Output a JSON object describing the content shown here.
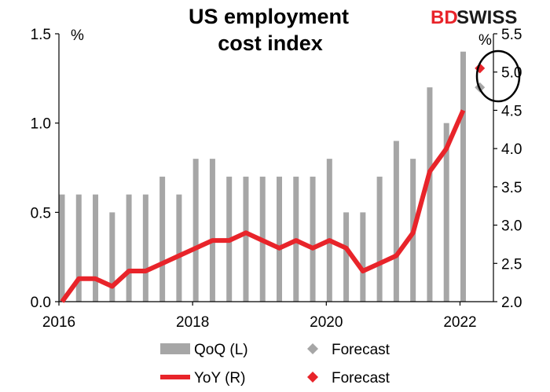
{
  "chart_data": {
    "type": "bar+line",
    "title": "US employment cost index",
    "title_lines": [
      "US employment",
      "cost index"
    ],
    "logo": {
      "part1": "BD",
      "part2": "SWISS"
    },
    "left_axis": {
      "unit": "%",
      "ylim": [
        0.0,
        1.5
      ],
      "ticks": [
        "0.0",
        "0.5",
        "1.0",
        "1.5"
      ],
      "tick_values": [
        0.0,
        0.5,
        1.0,
        1.5
      ]
    },
    "right_axis": {
      "unit": "%",
      "ylim": [
        2.0,
        5.5
      ],
      "ticks": [
        "2.0",
        "2.5",
        "3.0",
        "3.5",
        "4.0",
        "4.5",
        "5.0",
        "5.5"
      ],
      "tick_values": [
        2.0,
        2.5,
        3.0,
        3.5,
        4.0,
        4.5,
        5.0,
        5.5
      ]
    },
    "x_axis": {
      "start": 2016.0,
      "end": 2022.5,
      "ticks": [
        "2016",
        "2018",
        "2020",
        "2022"
      ],
      "tick_values": [
        2016,
        2018,
        2020,
        2022
      ]
    },
    "quarters": [
      2016.0,
      2016.25,
      2016.5,
      2016.75,
      2017.0,
      2017.25,
      2017.5,
      2017.75,
      2018.0,
      2018.25,
      2018.5,
      2018.75,
      2019.0,
      2019.25,
      2019.5,
      2019.75,
      2020.0,
      2020.25,
      2020.5,
      2020.75,
      2021.0,
      2021.25,
      2021.5,
      2021.75,
      2022.0
    ],
    "series": [
      {
        "name": "QoQ (L)",
        "type": "bar",
        "axis": "left",
        "color": "#a6a6a6",
        "values": [
          0.6,
          0.6,
          0.6,
          0.5,
          0.6,
          0.6,
          0.7,
          0.6,
          0.8,
          0.8,
          0.7,
          0.7,
          0.7,
          0.7,
          0.7,
          0.7,
          0.8,
          0.5,
          0.5,
          0.7,
          0.9,
          0.8,
          1.2,
          1.0,
          1.4
        ]
      },
      {
        "name": "YoY (R)",
        "type": "line",
        "axis": "right",
        "color": "#e8242a",
        "values": [
          2.0,
          2.3,
          2.3,
          2.2,
          2.4,
          2.4,
          2.5,
          2.6,
          2.7,
          2.8,
          2.8,
          2.9,
          2.8,
          2.7,
          2.8,
          2.7,
          2.8,
          2.7,
          2.4,
          2.5,
          2.6,
          2.9,
          3.7,
          4.0,
          4.5
        ]
      }
    ],
    "forecasts": [
      {
        "name": "Forecast",
        "of": "QoQ (L)",
        "axis": "left",
        "x": 2022.25,
        "value": 1.2,
        "color": "#a6a6a6"
      },
      {
        "name": "Forecast",
        "of": "YoY (R)",
        "axis": "right",
        "x": 2022.25,
        "value": 5.05,
        "color": "#e8242a"
      }
    ],
    "annotation": "circle highlighting forecasts",
    "legend": {
      "position": "bottom",
      "items": [
        {
          "label": "QoQ (L)",
          "kind": "bar",
          "color": "#a6a6a6"
        },
        {
          "label": "Forecast",
          "kind": "diamond",
          "color": "#a6a6a6"
        },
        {
          "label": "YoY (R)",
          "kind": "line",
          "color": "#e8242a"
        },
        {
          "label": "Forecast",
          "kind": "diamond",
          "color": "#e8242a"
        }
      ]
    }
  }
}
